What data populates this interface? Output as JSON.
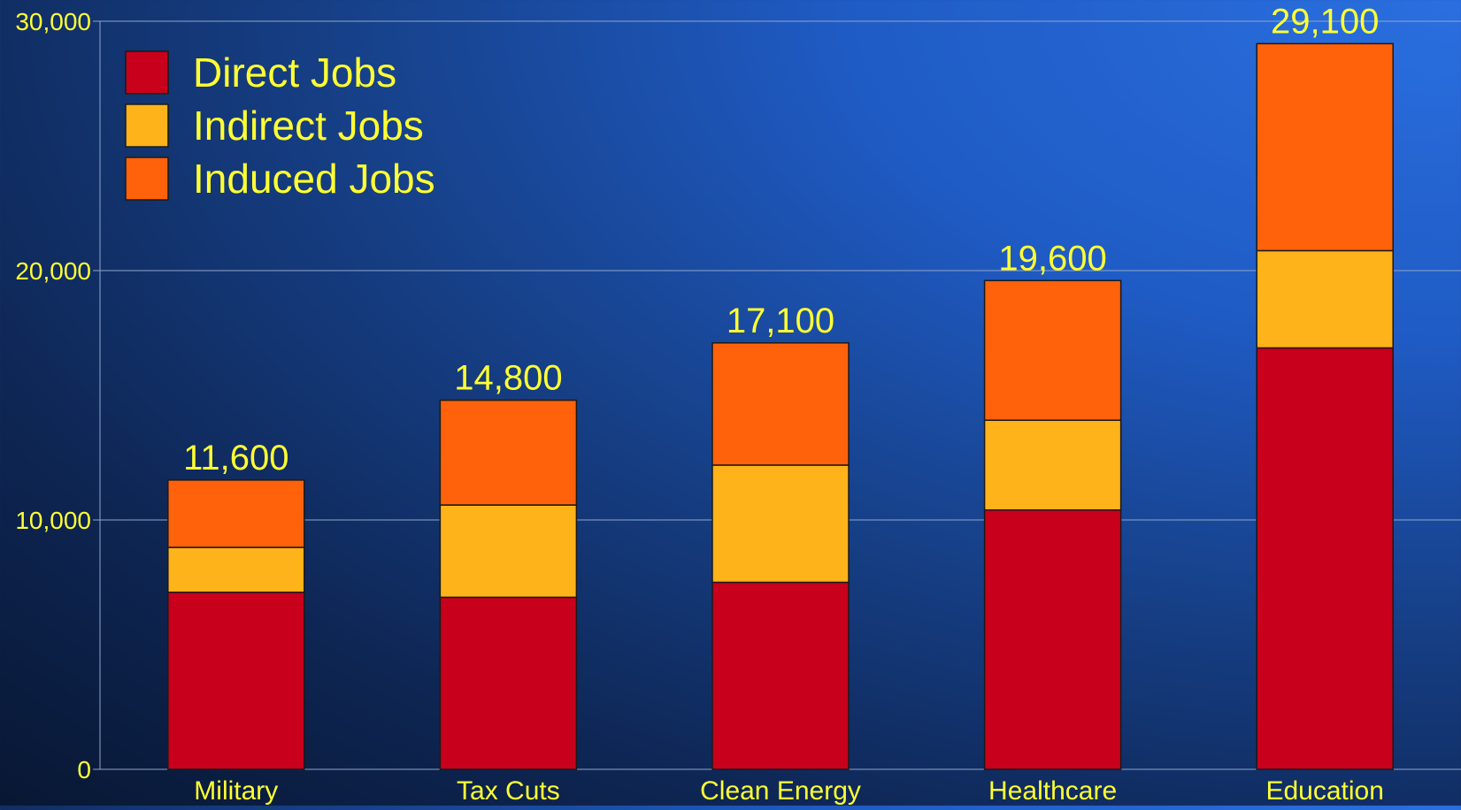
{
  "chart_data": {
    "type": "bar",
    "stacked": true,
    "title": "",
    "xlabel": "",
    "ylabel": "",
    "categories": [
      "Military",
      "Tax Cuts",
      "Clean Energy",
      "Healthcare",
      "Education"
    ],
    "series": [
      {
        "name": "Direct Jobs",
        "color": "#c8001c",
        "values": [
          7100,
          6900,
          7500,
          10400,
          16900
        ]
      },
      {
        "name": "Indirect Jobs",
        "color": "#ffb31a",
        "values": [
          1800,
          3700,
          4700,
          3600,
          3900
        ]
      },
      {
        "name": "Induced Jobs",
        "color": "#ff620a",
        "values": [
          2700,
          4200,
          4900,
          5600,
          8300
        ]
      }
    ],
    "totals": [
      "11,600",
      "14,800",
      "17,100",
      "19,600",
      "29,100"
    ],
    "y_ticks": [
      {
        "value": 0,
        "label": "0"
      },
      {
        "value": 10000,
        "label": "10,000"
      },
      {
        "value": 20000,
        "label": "20,000"
      },
      {
        "value": 30000,
        "label": "30,000"
      }
    ],
    "ylim": [
      0,
      30000
    ],
    "grid": true,
    "legend_position": "top-left",
    "text_color": "#ffff33",
    "grid_color": "#8fa6cc"
  }
}
